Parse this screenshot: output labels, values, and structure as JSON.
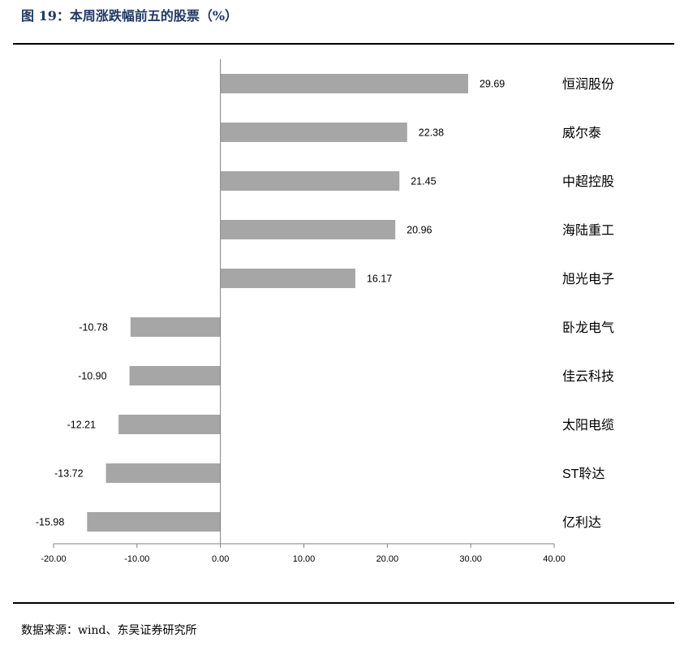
{
  "figure": {
    "title": "图 19：本周涨跌幅前五的股票（%）",
    "source": "数据来源：wind、东吴证券研究所"
  },
  "chart_data": {
    "type": "bar",
    "orientation": "horizontal",
    "categories": [
      "恒润股份",
      "威尔泰",
      "中超控股",
      "海陆重工",
      "旭光电子",
      "卧龙电气",
      "佳云科技",
      "太阳电缆",
      "ST聆达",
      "亿利达"
    ],
    "values": [
      29.69,
      22.38,
      21.45,
      20.96,
      16.17,
      -10.78,
      -10.9,
      -12.21,
      -13.72,
      -15.98
    ],
    "value_labels": [
      "29.69",
      "22.38",
      "21.45",
      "20.96",
      "16.17",
      "-10.78",
      "-10.90",
      "-12.21",
      "-13.72",
      "-15.98"
    ],
    "xlim": [
      -20,
      40
    ],
    "xticks": [
      -20,
      -10,
      0,
      10,
      20,
      30,
      40
    ],
    "xtick_labels": [
      "-20.00",
      "-10.00",
      "0.00",
      "10.00",
      "20.00",
      "30.00",
      "40.00"
    ],
    "bar_color": "#a6a6a6",
    "category_label_position": "right",
    "grid": false,
    "legend": "none"
  }
}
